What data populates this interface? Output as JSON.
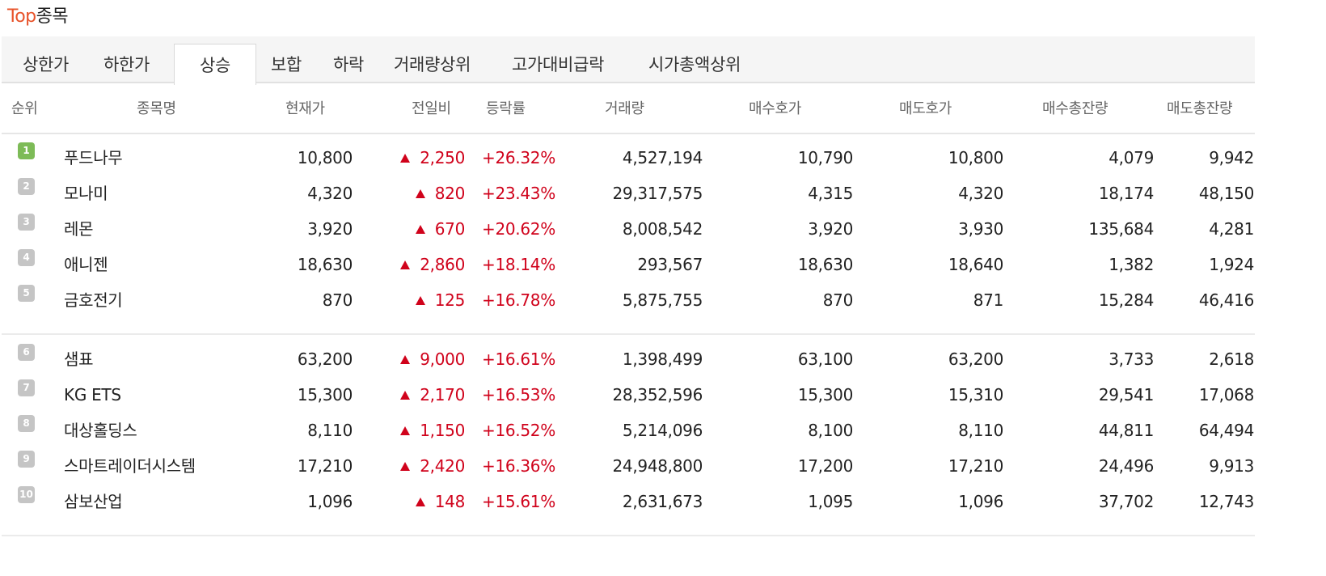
{
  "title": {
    "accent": "Top",
    "rest": "종목"
  },
  "tabs": [
    {
      "label": "상한가",
      "active": false
    },
    {
      "label": "하한가",
      "active": false
    },
    {
      "label": "상승",
      "active": true
    },
    {
      "label": "보합",
      "active": false
    },
    {
      "label": "하락",
      "active": false
    },
    {
      "label": "거래량상위",
      "active": false
    },
    {
      "label": "고가대비급락",
      "active": false
    },
    {
      "label": "시가총액상위",
      "active": false
    }
  ],
  "columns": [
    "순위",
    "종목명",
    "현재가",
    "전일비",
    "등락률",
    "거래량",
    "매수호가",
    "매도호가",
    "매수총잔량",
    "매도총잔량"
  ],
  "rows": [
    {
      "rank": "1",
      "name": "푸드나무",
      "price": "10,800",
      "change": "2,250",
      "rate": "+26.32%",
      "volume": "4,527,194",
      "bid": "10,790",
      "ask": "10,800",
      "bid_total": "4,079",
      "ask_total": "9,942"
    },
    {
      "rank": "2",
      "name": "모나미",
      "price": "4,320",
      "change": "820",
      "rate": "+23.43%",
      "volume": "29,317,575",
      "bid": "4,315",
      "ask": "4,320",
      "bid_total": "18,174",
      "ask_total": "48,150"
    },
    {
      "rank": "3",
      "name": "레몬",
      "price": "3,920",
      "change": "670",
      "rate": "+20.62%",
      "volume": "8,008,542",
      "bid": "3,920",
      "ask": "3,930",
      "bid_total": "135,684",
      "ask_total": "4,281"
    },
    {
      "rank": "4",
      "name": "애니젠",
      "price": "18,630",
      "change": "2,860",
      "rate": "+18.14%",
      "volume": "293,567",
      "bid": "18,630",
      "ask": "18,640",
      "bid_total": "1,382",
      "ask_total": "1,924"
    },
    {
      "rank": "5",
      "name": "금호전기",
      "price": "870",
      "change": "125",
      "rate": "+16.78%",
      "volume": "5,875,755",
      "bid": "870",
      "ask": "871",
      "bid_total": "15,284",
      "ask_total": "46,416"
    },
    {
      "rank": "6",
      "name": "샘표",
      "price": "63,200",
      "change": "9,000",
      "rate": "+16.61%",
      "volume": "1,398,499",
      "bid": "63,100",
      "ask": "63,200",
      "bid_total": "3,733",
      "ask_total": "2,618"
    },
    {
      "rank": "7",
      "name": "KG ETS",
      "price": "15,300",
      "change": "2,170",
      "rate": "+16.53%",
      "volume": "28,352,596",
      "bid": "15,300",
      "ask": "15,310",
      "bid_total": "29,541",
      "ask_total": "17,068"
    },
    {
      "rank": "8",
      "name": "대상홀딩스",
      "price": "8,110",
      "change": "1,150",
      "rate": "+16.52%",
      "volume": "5,214,096",
      "bid": "8,100",
      "ask": "8,110",
      "bid_total": "44,811",
      "ask_total": "64,494"
    },
    {
      "rank": "9",
      "name": "스마트레이더시스템",
      "price": "17,210",
      "change": "2,420",
      "rate": "+16.36%",
      "volume": "24,948,800",
      "bid": "17,200",
      "ask": "17,210",
      "bid_total": "24,496",
      "ask_total": "9,913"
    },
    {
      "rank": "10",
      "name": "삼보산업",
      "price": "1,096",
      "change": "148",
      "rate": "+15.61%",
      "volume": "2,631,673",
      "bid": "1,095",
      "ask": "1,096",
      "bid_total": "37,702",
      "ask_total": "12,743"
    }
  ],
  "colors": {
    "accent": "#e8532a",
    "up": "#d0021b",
    "rank_first": "#7dbb57",
    "rank_other": "#c5c5c5"
  },
  "icons": {
    "change_direction": "up-triangle-icon"
  }
}
